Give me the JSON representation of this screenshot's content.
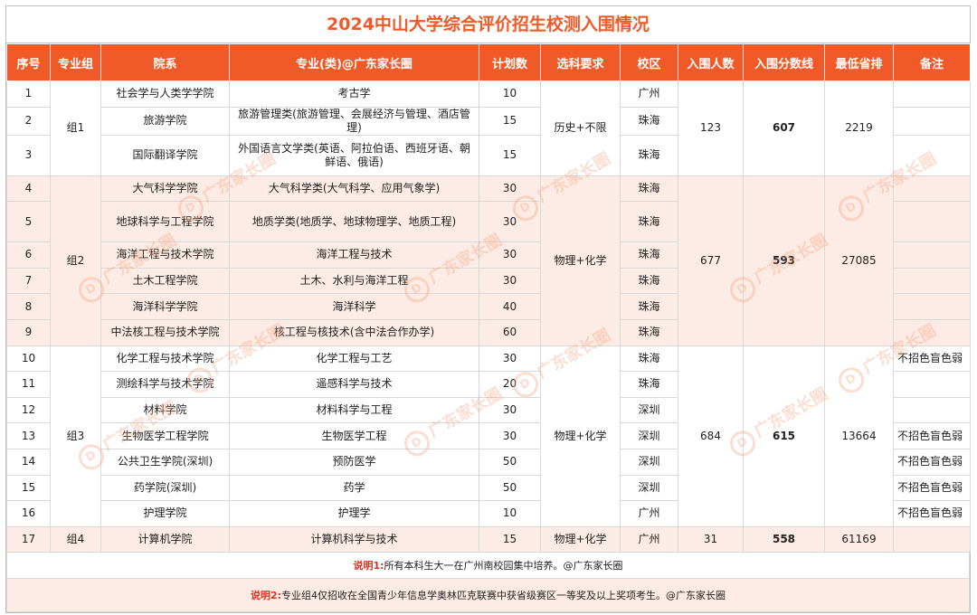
{
  "title": "2024中山大学综合评价招生校测入围情况",
  "headers": [
    "序号",
    "专业组",
    "院系",
    "专业(类)@广东家长圈",
    "计划数",
    "选科要求",
    "校区",
    "入围人数",
    "入围分数线",
    "最低省排",
    "备注"
  ],
  "rows": [
    {
      "no": "1",
      "school": "社会学与人类学学院",
      "major": "考古学",
      "plan": "10",
      "campus": "广州",
      "note": ""
    },
    {
      "no": "2",
      "school": "旅游学院",
      "major": "旅游管理类(旅游管理、会展经济与管理、酒店管理)",
      "plan": "15",
      "campus": "珠海",
      "note": ""
    },
    {
      "no": "3",
      "school": "国际翻译学院",
      "major": "外国语言文学类(英语、阿拉伯语、西班牙语、朝鲜语、俄语)",
      "plan": "15",
      "campus": "珠海",
      "note": ""
    },
    {
      "no": "4",
      "school": "大气科学学院",
      "major": "大气科学类(大气科学、应用气象学)",
      "plan": "30",
      "campus": "珠海",
      "note": ""
    },
    {
      "no": "5",
      "school": "地球科学与工程学院",
      "major": "地质学类(地质学、地球物理学、地质工程)",
      "plan": "30",
      "campus": "珠海",
      "note": ""
    },
    {
      "no": "6",
      "school": "海洋工程与技术学院",
      "major": "海洋工程与技术",
      "plan": "30",
      "campus": "珠海",
      "note": ""
    },
    {
      "no": "7",
      "school": "土木工程学院",
      "major": "土木、水利与海洋工程",
      "plan": "30",
      "campus": "珠海",
      "note": ""
    },
    {
      "no": "8",
      "school": "海洋科学学院",
      "major": "海洋科学",
      "plan": "40",
      "campus": "珠海",
      "note": ""
    },
    {
      "no": "9",
      "school": "中法核工程与技术学院",
      "major": "核工程与核技术(含中法合作办学)",
      "plan": "60",
      "campus": "珠海",
      "note": ""
    },
    {
      "no": "10",
      "school": "化学工程与技术学院",
      "major": "化学工程与工艺",
      "plan": "30",
      "campus": "珠海",
      "note": "不招色盲色弱"
    },
    {
      "no": "11",
      "school": "测绘科学与技术学院",
      "major": "遥感科学与技术",
      "plan": "20",
      "campus": "珠海",
      "note": ""
    },
    {
      "no": "12",
      "school": "材料学院",
      "major": "材料科学与工程",
      "plan": "30",
      "campus": "深圳",
      "note": ""
    },
    {
      "no": "13",
      "school": "生物医学工程学院",
      "major": "生物医学工程",
      "plan": "30",
      "campus": "深圳",
      "note": "不招色盲色弱"
    },
    {
      "no": "14",
      "school": "公共卫生学院(深圳)",
      "major": "预防医学",
      "plan": "50",
      "campus": "深圳",
      "note": "不招色盲色弱"
    },
    {
      "no": "15",
      "school": "药学院(深圳)",
      "major": "药学",
      "plan": "50",
      "campus": "深圳",
      "note": "不招色盲色弱"
    },
    {
      "no": "16",
      "school": "护理学院",
      "major": "护理学",
      "plan": "10",
      "campus": "广州",
      "note": "不招色盲色弱"
    },
    {
      "no": "17",
      "school": "计算机学院",
      "major": "计算机科学与技术",
      "plan": "15",
      "campus": "广州",
      "note": ""
    }
  ],
  "groups": [
    {
      "name": "组1",
      "subject": "历史+不限",
      "admitted": "123",
      "cutoff": "607",
      "rank": "2219"
    },
    {
      "name": "组2",
      "subject": "物理+化学",
      "admitted": "677",
      "cutoff": "593",
      "rank": "27085"
    },
    {
      "name": "组3",
      "subject": "物理+化学",
      "admitted": "684",
      "cutoff": "615",
      "rank": "13664"
    },
    {
      "name": "组4",
      "subject": "物理+化学",
      "admitted": "31",
      "cutoff": "558",
      "rank": "61169"
    }
  ],
  "notes": [
    {
      "key": "说明1:",
      "text": "所有本科生大一在广州南校园集中培养。@广东家长圈"
    },
    {
      "key": "说明2:",
      "text": "专业组4仅招收在全国青少年信息学奥林匹克联赛中获省级赛区一等奖及以上奖项考生。@广东家长圈"
    }
  ],
  "watermark": "广东家长圈",
  "colors": {
    "accent": "#ef5a28",
    "band": "#fdece5",
    "note_key": "#e0301e"
  }
}
